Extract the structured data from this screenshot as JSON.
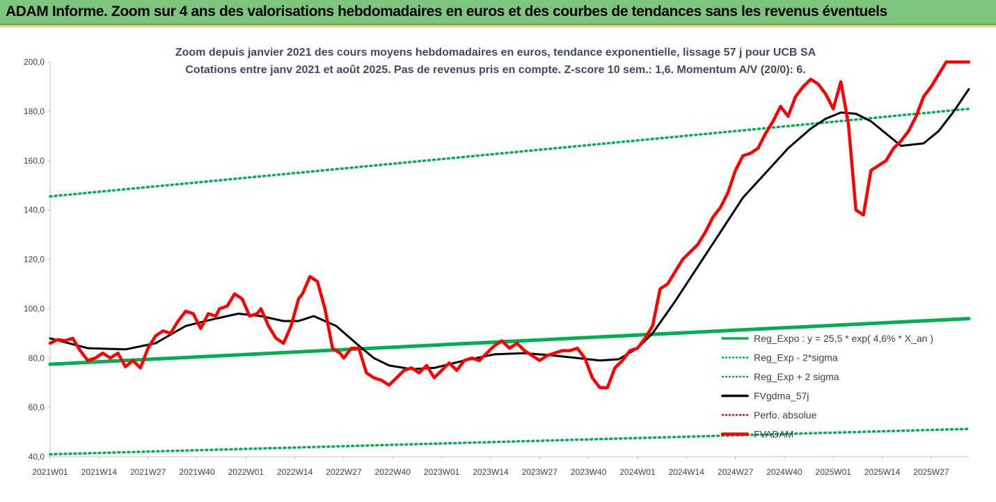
{
  "header": {
    "title": "ADAM Informe. Zoom sur 4 ans des valorisations hebdomadaires en euros et des courbes de tendances sans les revenus éventuels"
  },
  "chart_data": {
    "type": "line",
    "title": "Zoom depuis janvier 2021 des cours moyens hebdomadaires en euros, tendance exponentielle, lissage 57 j pour UCB SA",
    "subtitle": "Cotations entre janv 2021 et août 2025.  Pas de revenus pris en compte. Z-score 10 sem.: 1,6. Momentum A/V (20/0): 6.",
    "xlabel": "",
    "ylabel": "",
    "ylim": [
      40,
      200
    ],
    "y_ticks": [
      "40,0",
      "60,0",
      "80,0",
      "100,0",
      "120,0",
      "140,0",
      "160,0",
      "180,0",
      "200,0"
    ],
    "x_ticks": [
      "2021W01",
      "2021W14",
      "2021W27",
      "2021W40",
      "2022W01",
      "2022W14",
      "2022W27",
      "2022W40",
      "2023W01",
      "2023W14",
      "2023W27",
      "2023W40",
      "2024W01",
      "2024W14",
      "2024W27",
      "2024W40",
      "2025W01",
      "2025W14",
      "2025W27"
    ],
    "x_tick_index": [
      0,
      13,
      26,
      39,
      52,
      65,
      78,
      91,
      104,
      117,
      130,
      143,
      156,
      169,
      182,
      195,
      208,
      221,
      234
    ],
    "n_weeks": 245,
    "grid": false,
    "legend_position": "bottom-right",
    "legend": [
      {
        "name": "Reg_Expo : y = 25,5 * exp( 4,6% *  X_an )",
        "color": "#00b050",
        "style": "solid"
      },
      {
        "name": "Reg_Exp - 2*sigma",
        "color": "#00b050",
        "style": "dotted"
      },
      {
        "name": "Reg_Exp + 2 sigma",
        "color": "#00b050",
        "style": "dotted"
      },
      {
        "name": "FVgdma_57j",
        "color": "#000000",
        "style": "solid"
      },
      {
        "name": "Perfo. absolue",
        "color": "#ff0000",
        "style": "dotted"
      },
      {
        "name": "FVADAM",
        "color": "#ff0000",
        "style": "solid"
      }
    ],
    "series": [
      {
        "key": "reg_expo",
        "color": "#00b050",
        "dash": "",
        "width": 5,
        "x": [
          0,
          244
        ],
        "values": [
          77.5,
          96.0
        ]
      },
      {
        "key": "reg_lower",
        "color": "#00b050",
        "dash": "2,5",
        "width": 3.5,
        "x": [
          0,
          244
        ],
        "values": [
          41.0,
          51.3
        ]
      },
      {
        "key": "reg_upper",
        "color": "#00b050",
        "dash": "2,5",
        "width": 3.5,
        "x": [
          0,
          244
        ],
        "values": [
          145.5,
          181.0
        ]
      },
      {
        "key": "fvgdma",
        "color": "#000000",
        "dash": "",
        "width": 3,
        "x": [
          0,
          10,
          20,
          28,
          36,
          44,
          50,
          56,
          62,
          66,
          70,
          76,
          82,
          86,
          90,
          96,
          102,
          110,
          118,
          126,
          134,
          140,
          146,
          151,
          156,
          160,
          166,
          172,
          178,
          184,
          190,
          196,
          202,
          206,
          210,
          214,
          218,
          222,
          226,
          232,
          236,
          240,
          244
        ],
        "values": [
          88,
          84,
          83.5,
          86,
          93,
          96,
          98,
          97,
          95,
          95,
          97,
          93,
          85,
          80,
          77,
          75.5,
          76,
          79,
          81.5,
          82,
          81,
          80,
          79,
          79.5,
          84,
          90,
          103,
          117,
          131,
          145,
          155,
          165,
          173,
          177,
          179.5,
          179,
          176,
          171,
          166,
          167,
          172,
          180,
          189
        ]
      },
      {
        "key": "fvadam",
        "color": "#ff0000",
        "dash": "",
        "width": 4.5,
        "x": [
          0,
          2,
          4,
          6,
          8,
          10,
          12,
          14,
          16,
          18,
          20,
          22,
          24,
          26,
          28,
          30,
          32,
          34,
          36,
          38,
          40,
          42,
          44,
          45,
          47,
          49,
          51,
          53,
          55,
          56,
          58,
          60,
          62,
          64,
          66,
          67,
          69,
          71,
          73,
          75,
          77,
          78,
          80,
          82,
          84,
          86,
          88,
          90,
          92,
          94,
          96,
          98,
          100,
          102,
          104,
          106,
          108,
          110,
          112,
          114,
          116,
          118,
          120,
          122,
          124,
          126,
          128,
          130,
          132,
          134,
          136,
          138,
          140,
          142,
          144,
          146,
          148,
          150,
          152,
          154,
          156,
          158,
          160,
          162,
          164,
          166,
          168,
          170,
          172,
          174,
          176,
          178,
          180,
          182,
          184,
          186,
          188,
          190,
          192,
          194,
          196,
          198,
          200,
          202,
          204,
          206,
          208,
          210,
          212,
          214,
          216,
          218,
          220,
          222,
          224,
          226,
          228,
          230,
          232,
          234,
          236,
          238,
          240,
          242,
          244
        ],
        "values": [
          86,
          87.5,
          87,
          88,
          83,
          79,
          80,
          82,
          80,
          82,
          76.5,
          79,
          76,
          84,
          89,
          91,
          90,
          95,
          99,
          98,
          92,
          98,
          97,
          100,
          101,
          106,
          104,
          97,
          98,
          100,
          93,
          88,
          86,
          93,
          104,
          106,
          113,
          111,
          100,
          84,
          82,
          80,
          84,
          84,
          74,
          72,
          71,
          69,
          72,
          75,
          76,
          74,
          77,
          72,
          75,
          78,
          75,
          79,
          80,
          79,
          82,
          85,
          87,
          84,
          86,
          83,
          81,
          79,
          81,
          82,
          83,
          83,
          84,
          80,
          72,
          68,
          68,
          76,
          79,
          83,
          84,
          88,
          93,
          108,
          110,
          115,
          120,
          123,
          126,
          131,
          137,
          141,
          147,
          156,
          162,
          163,
          165,
          171,
          176,
          182,
          178,
          186,
          190,
          193,
          191,
          187,
          181,
          192,
          175,
          140,
          138,
          156,
          158,
          160,
          165,
          168,
          172,
          178,
          186,
          190,
          195,
          200,
          200,
          200,
          200
        ]
      }
    ]
  }
}
